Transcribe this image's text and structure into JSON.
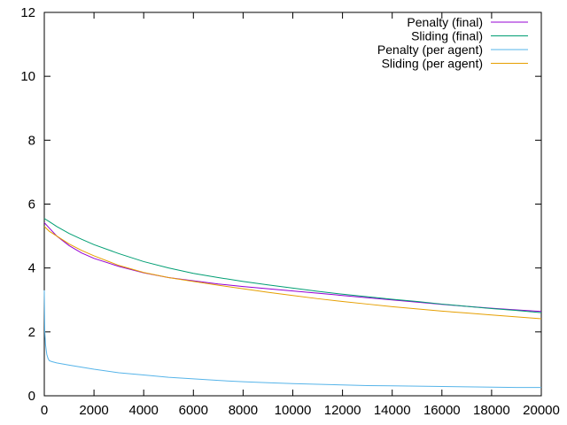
{
  "chart_data": {
    "type": "line",
    "title": "",
    "xlabel": "",
    "ylabel": "",
    "xlim": [
      0,
      20000
    ],
    "ylim": [
      0,
      12
    ],
    "xticks": [
      "0",
      "2000",
      "4000",
      "6000",
      "8000",
      "10000",
      "12000",
      "14000",
      "16000",
      "18000",
      "20000"
    ],
    "yticks": [
      "0",
      "2",
      "4",
      "6",
      "8",
      "10",
      "12"
    ],
    "grid": false,
    "legend_position": "top-right",
    "series": [
      {
        "name": "Penalty (final)",
        "color": "#9400d3",
        "x": [
          0,
          200,
          500,
          1000,
          1500,
          2000,
          3000,
          4000,
          5000,
          6000,
          7000,
          8000,
          9000,
          10000,
          11000,
          12000,
          13000,
          14000,
          15000,
          16000,
          17000,
          18000,
          19000,
          20000
        ],
        "y": [
          5.42,
          5.25,
          5.0,
          4.7,
          4.47,
          4.3,
          4.05,
          3.85,
          3.7,
          3.6,
          3.5,
          3.42,
          3.35,
          3.28,
          3.21,
          3.14,
          3.07,
          3.0,
          2.93,
          2.86,
          2.8,
          2.74,
          2.69,
          2.64
        ]
      },
      {
        "name": "Sliding (final)",
        "color": "#009e73",
        "x": [
          0,
          200,
          500,
          1000,
          1500,
          2000,
          3000,
          4000,
          5000,
          6000,
          7000,
          8000,
          9000,
          10000,
          11000,
          12000,
          13000,
          14000,
          15000,
          16000,
          17000,
          18000,
          19000,
          20000
        ],
        "y": [
          5.55,
          5.45,
          5.3,
          5.08,
          4.9,
          4.73,
          4.45,
          4.2,
          4.0,
          3.83,
          3.7,
          3.58,
          3.47,
          3.37,
          3.27,
          3.18,
          3.1,
          3.02,
          2.95,
          2.87,
          2.8,
          2.73,
          2.67,
          2.6
        ]
      },
      {
        "name": "Penalty (per agent)",
        "color": "#56b4e9",
        "x": [
          0,
          20,
          50,
          100,
          150,
          200,
          300,
          500,
          1000,
          2000,
          3000,
          4000,
          5000,
          6000,
          7000,
          8000,
          9000,
          10000,
          11000,
          12000,
          13000,
          14000,
          15000,
          16000,
          17000,
          18000,
          19000,
          20000
        ],
        "y": [
          3.3,
          2.0,
          1.6,
          1.3,
          1.17,
          1.1,
          1.07,
          1.03,
          0.96,
          0.83,
          0.72,
          0.65,
          0.58,
          0.53,
          0.48,
          0.44,
          0.41,
          0.38,
          0.36,
          0.34,
          0.32,
          0.31,
          0.3,
          0.29,
          0.28,
          0.27,
          0.26,
          0.26
        ]
      },
      {
        "name": "Sliding (per agent)",
        "color": "#e69f00",
        "x": [
          0,
          200,
          500,
          1000,
          1500,
          2000,
          3000,
          4000,
          5000,
          6000,
          7000,
          8000,
          9000,
          10000,
          11000,
          12000,
          13000,
          14000,
          15000,
          16000,
          17000,
          18000,
          19000,
          20000
        ],
        "y": [
          5.3,
          5.15,
          5.0,
          4.75,
          4.55,
          4.38,
          4.08,
          3.86,
          3.7,
          3.58,
          3.46,
          3.35,
          3.24,
          3.14,
          3.04,
          2.95,
          2.87,
          2.79,
          2.72,
          2.65,
          2.59,
          2.53,
          2.47,
          2.41
        ]
      }
    ]
  }
}
